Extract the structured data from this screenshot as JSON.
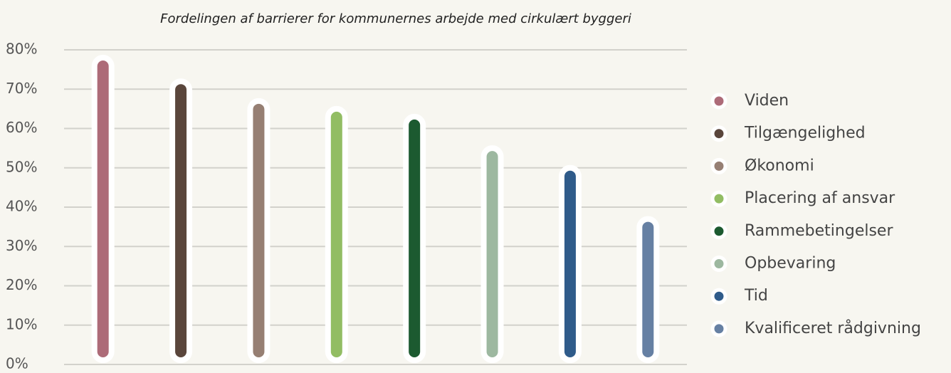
{
  "chart_data": {
    "type": "bar",
    "title": "Fordelingen af barrierer for kommunernes arbejde med cirkulært byggeri",
    "categories": [
      "Viden",
      "Tilgængelighed",
      "Økonomi",
      "Placering af ansvar",
      "Rammebetingelser",
      "Opbevaring",
      "Tid",
      "Kvalificeret rådgivning"
    ],
    "values": [
      78,
      72,
      67,
      65,
      63,
      55,
      50,
      37
    ],
    "colors": [
      "#ad6b78",
      "#5a463c",
      "#967f73",
      "#92bd63",
      "#1c5a30",
      "#9db8a0",
      "#2f5b8a",
      "#6680a3"
    ],
    "ylim": [
      0,
      80
    ],
    "yticks": [
      {
        "value": 0,
        "label": "0%"
      },
      {
        "value": 10,
        "label": "10%"
      },
      {
        "value": 20,
        "label": "20%"
      },
      {
        "value": 30,
        "label": "30%"
      },
      {
        "value": 40,
        "label": "40%"
      },
      {
        "value": 50,
        "label": "50%"
      },
      {
        "value": 60,
        "label": "60%"
      },
      {
        "value": 70,
        "label": "70%"
      },
      {
        "value": 80,
        "label": "80%"
      }
    ],
    "grid": true,
    "legend": "right"
  }
}
